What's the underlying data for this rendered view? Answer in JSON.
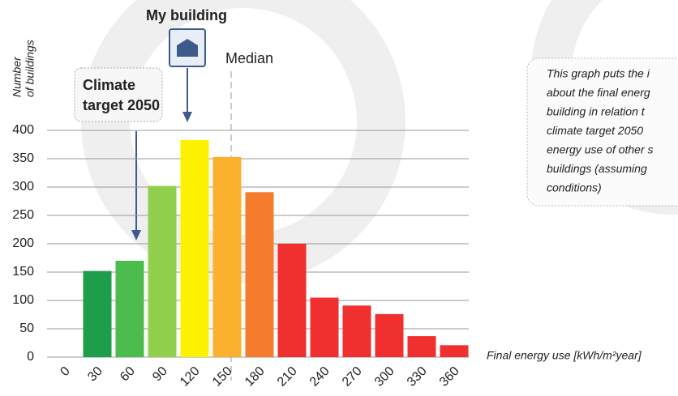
{
  "chart_data": {
    "type": "bar",
    "y_label": [
      "Number",
      "of buildings"
    ],
    "x_label": "Final energy use [kWh/m²year]",
    "categories": [
      "0",
      "30",
      "60",
      "90",
      "120",
      "150",
      "180",
      "210",
      "240",
      "270",
      "300",
      "330",
      "360"
    ],
    "values": [
      null,
      152,
      170,
      302,
      383,
      353,
      291,
      200,
      105,
      91,
      76,
      37,
      21
    ],
    "colors": [
      null,
      "#1e9e4a",
      "#4cbc4c",
      "#90d04c",
      "#fff200",
      "#fbb02e",
      "#f57c2c",
      "#f0302e",
      "#f0302e",
      "#f0302e",
      "#f0302e",
      "#f0302e",
      "#f0302e"
    ],
    "ylim": [
      0,
      400
    ],
    "yticks": [
      0,
      50,
      100,
      150,
      200,
      250,
      300,
      350,
      400
    ],
    "grid": true,
    "annotations": {
      "my_building": "My building",
      "climate_target": [
        "Climate",
        "target 2050"
      ],
      "median": "Median"
    },
    "info_text": [
      "This graph puts the i",
      "about the final energ",
      "building in relation t",
      "climate target 2050 ",
      "energy use of other s",
      "buildings (assuming ",
      "conditions)"
    ]
  }
}
